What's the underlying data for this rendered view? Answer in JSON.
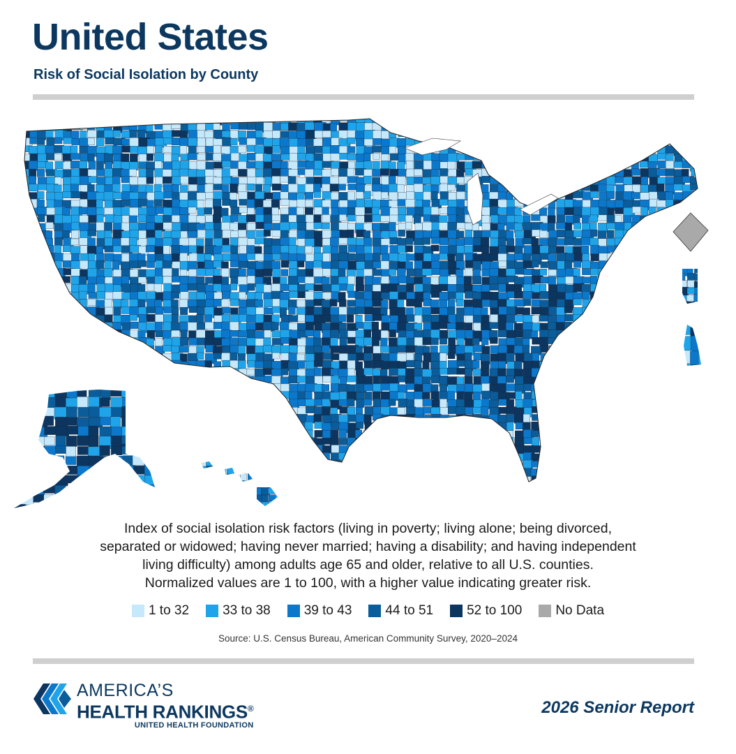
{
  "header": {
    "title": "United States",
    "subtitle": "Risk of Social Isolation by County"
  },
  "map": {
    "description_lines": [
      "Index of social isolation risk factors (living in poverty; living alone; being divorced,",
      "separated or widowed; having never married; having a disability; and having independent",
      "living difficulty) among adults age 65 and older, relative to all U.S. counties.",
      "Normalized values are 1 to 100, with a higher value indicating greater risk."
    ],
    "legend": [
      {
        "label": "1 to 32",
        "color": "#c6e8fb"
      },
      {
        "label": "33 to 38",
        "color": "#1fa4ea"
      },
      {
        "label": "39 to 43",
        "color": "#0b78cc"
      },
      {
        "label": "44 to 51",
        "color": "#0a5c9a"
      },
      {
        "label": "52 to 100",
        "color": "#0c3560"
      },
      {
        "label": "No Data",
        "color": "#a9a9a9"
      }
    ],
    "source": "Source: U.S. Census Bureau, American Community Survey, 2020–2024"
  },
  "footer": {
    "logo_line1": "AMERICA’S",
    "logo_line2": "HEALTH RANKINGS",
    "logo_registered": "®",
    "logo_line3": "UNITED HEALTH FOUNDATION",
    "report_name": "2026 Senior Report"
  }
}
